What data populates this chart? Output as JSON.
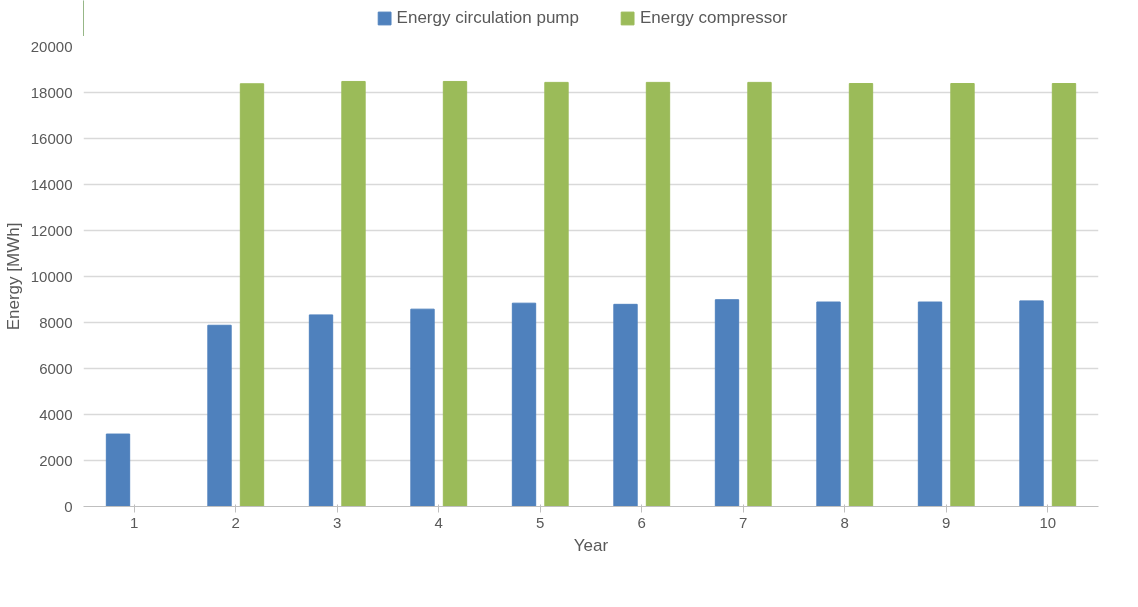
{
  "chart_data": {
    "type": "bar",
    "xlabel": "Year",
    "ylabel": "Energy [MWh]",
    "categories": [
      "1",
      "2",
      "3",
      "4",
      "5",
      "6",
      "7",
      "8",
      "9",
      "10"
    ],
    "series": [
      {
        "name": "Energy circulation pump",
        "color": "#4f81bd",
        "values": [
          3150,
          7880,
          8330,
          8580,
          8840,
          8790,
          8990,
          8890,
          8890,
          8940
        ]
      },
      {
        "name": "Energy compressor",
        "color": "#9bbb59",
        "values": [
          null,
          18380,
          18480,
          18480,
          18440,
          18440,
          18440,
          18390,
          18390,
          18390
        ]
      }
    ],
    "ylim": [
      0,
      20000
    ],
    "yticks": [
      0,
      2000,
      4000,
      6000,
      8000,
      10000,
      12000,
      14000,
      16000,
      18000,
      20000
    ],
    "grid": "y",
    "legend": "top"
  }
}
